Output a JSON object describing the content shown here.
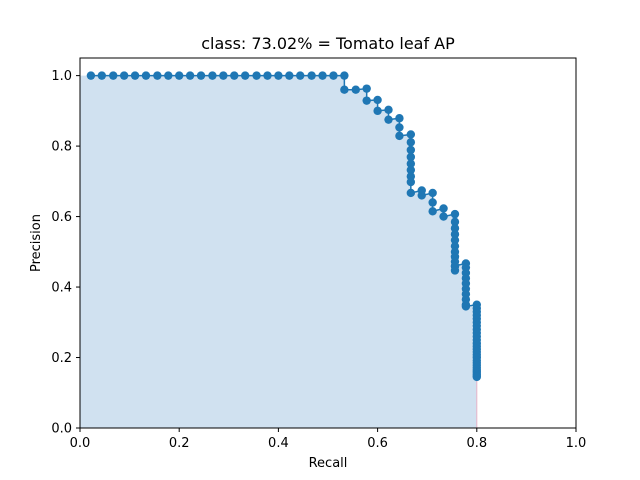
{
  "chart_data": {
    "type": "scatter",
    "title": "class: 73.02% = Tomato leaf AP",
    "xlabel": "Recall",
    "ylabel": "Precision",
    "xlim": [
      0,
      1
    ],
    "ylim": [
      0,
      1.05
    ],
    "xticks": [
      "0.0",
      "0.2",
      "0.4",
      "0.6",
      "0.8",
      "1.0"
    ],
    "yticks": [
      "0.0",
      "0.2",
      "0.4",
      "0.6",
      "0.8",
      "1.0"
    ],
    "grid": false,
    "legend": "none",
    "colors": {
      "points": "#1f77b4",
      "fill": "#d0e1f0",
      "line": "#1f77b4",
      "drop_line": "#e6b3c7"
    },
    "series": [
      {
        "x": [
          0.022,
          0.044,
          0.067,
          0.089,
          0.111,
          0.133,
          0.156,
          0.178,
          0.2,
          0.222,
          0.244,
          0.267,
          0.289,
          0.311,
          0.333,
          0.356,
          0.378,
          0.4,
          0.422,
          0.444,
          0.467,
          0.489,
          0.511,
          0.533,
          0.533,
          0.556,
          0.578,
          0.578,
          0.6,
          0.6,
          0.622,
          0.622,
          0.644,
          0.644,
          0.644,
          0.667,
          0.667,
          0.667,
          0.667,
          0.667,
          0.667,
          0.667,
          0.667,
          0.667,
          0.689,
          0.689,
          0.711,
          0.711,
          0.711,
          0.733,
          0.733,
          0.756,
          0.756,
          0.756,
          0.756,
          0.756,
          0.756,
          0.756,
          0.756,
          0.756,
          0.756,
          0.756,
          0.756,
          0.778,
          0.778,
          0.778,
          0.778,
          0.778,
          0.778,
          0.778,
          0.778,
          0.778,
          0.778,
          0.8,
          0.8,
          0.8,
          0.8,
          0.8,
          0.8,
          0.8,
          0.8,
          0.8,
          0.8,
          0.8,
          0.8,
          0.8,
          0.8,
          0.8,
          0.8,
          0.8,
          0.8,
          0.8,
          0.8,
          0.8,
          0.8,
          0.8,
          0.8,
          0.8,
          0.8
        ],
        "y": [
          1.0,
          1.0,
          1.0,
          1.0,
          1.0,
          1.0,
          1.0,
          1.0,
          1.0,
          1.0,
          1.0,
          1.0,
          1.0,
          1.0,
          1.0,
          1.0,
          1.0,
          1.0,
          1.0,
          1.0,
          1.0,
          1.0,
          1.0,
          1.0,
          0.96,
          0.96,
          0.963,
          0.929,
          0.931,
          0.9,
          0.903,
          0.875,
          0.879,
          0.853,
          0.829,
          0.833,
          0.811,
          0.789,
          0.769,
          0.75,
          0.732,
          0.714,
          0.698,
          0.667,
          0.674,
          0.66,
          0.667,
          0.64,
          0.615,
          0.623,
          0.6,
          0.607,
          0.585,
          0.567,
          0.55,
          0.533,
          0.516,
          0.5,
          0.486,
          0.472,
          0.459,
          0.447,
          0.46,
          0.467,
          0.455,
          0.44,
          0.425,
          0.41,
          0.395,
          0.38,
          0.365,
          0.35,
          0.345,
          0.35,
          0.34,
          0.33,
          0.32,
          0.31,
          0.3,
          0.29,
          0.28,
          0.27,
          0.26,
          0.25,
          0.24,
          0.232,
          0.224,
          0.216,
          0.208,
          0.2,
          0.192,
          0.185,
          0.178,
          0.171,
          0.165,
          0.159,
          0.153,
          0.148,
          0.145
        ]
      }
    ]
  }
}
